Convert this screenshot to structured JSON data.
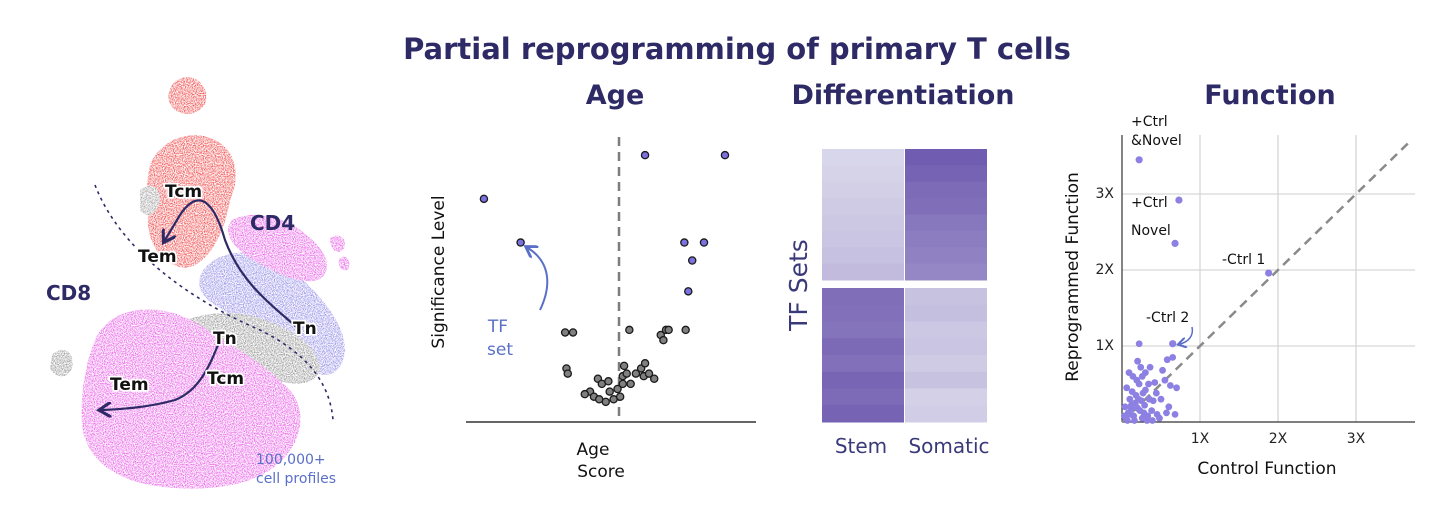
{
  "title": "Partial reprogramming of primary T cells",
  "colors": {
    "title": "#2e2a66",
    "tf_point": "#7b72e0",
    "other_point": "#808080",
    "heat_dark": "#6a55ad",
    "heat_light": "#dcdaeb",
    "function_point": "#8c80e3",
    "umap_red": "#f03a3a",
    "umap_magenta": "#e84fe6",
    "umap_violet": "#8b84e6",
    "umap_gray": "#8d8d8d",
    "tf_annotation": "#5a6fc8"
  },
  "umap": {
    "label_cd4": "CD4",
    "label_cd8": "CD8",
    "clusters": [
      "Tcm",
      "Tem",
      "Tn",
      "Tn",
      "Tem",
      "Tcm"
    ],
    "caption_line1": "100,000+",
    "caption_line2": "cell profiles"
  },
  "chart_data": [
    {
      "type": "scatter",
      "panel": "Age",
      "title": "Age",
      "xlabel_line1": "Age",
      "xlabel_line2": "Score",
      "ylabel": "Significance Level",
      "annotation_line1": "TF",
      "annotation_line2": "set",
      "xlim": [
        -10,
        10
      ],
      "ylim": [
        0,
        10
      ],
      "threshold_x": 0,
      "series": [
        {
          "name": "TF set",
          "points": [
            [
              -9.7,
              8.1
            ],
            [
              -6.9,
              6.4
            ],
            [
              2.6,
              9.8
            ],
            [
              8.7,
              9.8
            ],
            [
              5.6,
              6.4
            ],
            [
              7.1,
              6.4
            ],
            [
              6.2,
              5.7
            ],
            [
              5.9,
              4.5
            ]
          ]
        },
        {
          "name": "",
          "points": [
            [
              -3.5,
              2.9
            ],
            [
              -2.9,
              2.9
            ],
            [
              -3.4,
              1.5
            ],
            [
              -3.3,
              1.3
            ],
            [
              -1.6,
              0.6
            ],
            [
              -2.0,
              0.5
            ],
            [
              -1.3,
              0.4
            ],
            [
              -1.0,
              1.1
            ],
            [
              -0.7,
              0.9
            ],
            [
              -0.4,
              0.2
            ],
            [
              -0.1,
              0.6
            ],
            [
              0.2,
              0.3
            ],
            [
              0.5,
              0.7
            ],
            [
              0.9,
              1.2
            ],
            [
              1.2,
              1.3
            ],
            [
              1.5,
              0.9
            ],
            [
              1.9,
              1.3
            ],
            [
              2.3,
              1.5
            ],
            [
              2.5,
              1.2
            ],
            [
              2.9,
              1.3
            ],
            [
              3.3,
              1.1
            ],
            [
              0.7,
              0.4
            ],
            [
              -0.9,
              0.3
            ],
            [
              1.4,
              3.0
            ],
            [
              3.8,
              2.8
            ],
            [
              4.2,
              3.0
            ],
            [
              4.4,
              3.0
            ],
            [
              4.0,
              2.6
            ],
            [
              5.7,
              3.0
            ],
            [
              1.0,
              1.6
            ],
            [
              2.6,
              1.7
            ],
            [
              -0.2,
              1.0
            ],
            [
              0.9,
              0.9
            ]
          ]
        }
      ]
    },
    {
      "type": "heatmap",
      "panel": "Differentiation",
      "title": "Differentiation",
      "ylabel": "TF Sets",
      "columns": [
        "Stem",
        "Somatic"
      ],
      "rows_group1": [
        0.08,
        0.1,
        0.13,
        0.16,
        0.18,
        0.2,
        0.23,
        0.27
      ],
      "rows_group1_somatic": [
        0.95,
        0.9,
        0.84,
        0.82,
        0.76,
        0.72,
        0.68,
        0.64
      ],
      "rows_group2_stem": [
        0.82,
        0.8,
        0.78,
        0.85,
        0.8,
        0.88,
        0.84,
        0.9
      ],
      "rows_group2_somatic": [
        0.22,
        0.25,
        0.18,
        0.2,
        0.16,
        0.22,
        0.12,
        0.14
      ]
    },
    {
      "type": "scatter",
      "panel": "Function",
      "title": "Function",
      "xlabel": "Control Function",
      "ylabel": "Reprogrammed Function",
      "xticks": [
        "1X",
        "2X",
        "3X"
      ],
      "yticks": [
        "1X",
        "2X",
        "3X"
      ],
      "xlim": [
        0,
        3.8
      ],
      "ylim": [
        0,
        3.6
      ],
      "reference_line": "y = x",
      "grid": true,
      "labels": {
        "ctrl_novel_line1": "+Ctrl",
        "ctrl_novel_line2": "&Novel",
        "ctrl": "+Ctrl",
        "novel": "Novel",
        "minus_ctrl1": "-Ctrl 1",
        "minus_ctrl2": "-Ctrl 2"
      },
      "highlight_points": [
        [
          0.22,
          3.45
        ],
        [
          0.73,
          2.92
        ],
        [
          0.68,
          2.35
        ],
        [
          1.88,
          1.96
        ],
        [
          0.65,
          1.03
        ]
      ],
      "points": [
        [
          0.05,
          0.05
        ],
        [
          0.08,
          0.12
        ],
        [
          0.12,
          0.22
        ],
        [
          0.15,
          0.08
        ],
        [
          0.18,
          0.35
        ],
        [
          0.2,
          0.18
        ],
        [
          0.22,
          0.5
        ],
        [
          0.25,
          0.28
        ],
        [
          0.28,
          0.12
        ],
        [
          0.3,
          0.42
        ],
        [
          0.1,
          0.3
        ],
        [
          0.06,
          0.45
        ],
        [
          0.14,
          0.6
        ],
        [
          0.24,
          0.72
        ],
        [
          0.3,
          0.65
        ],
        [
          0.35,
          0.3
        ],
        [
          0.38,
          0.15
        ],
        [
          0.42,
          0.52
        ],
        [
          0.2,
          0.8
        ],
        [
          0.12,
          0.18
        ],
        [
          0.16,
          0.02
        ],
        [
          0.26,
          0.05
        ],
        [
          0.33,
          0.08
        ],
        [
          0.45,
          0.1
        ],
        [
          0.5,
          0.3
        ],
        [
          0.55,
          0.55
        ],
        [
          0.62,
          0.48
        ],
        [
          0.58,
          0.82
        ],
        [
          0.6,
          0.2
        ],
        [
          0.68,
          0.1
        ],
        [
          0.7,
          0.45
        ],
        [
          0.48,
          0.05
        ],
        [
          0.04,
          0.2
        ],
        [
          0.09,
          0.65
        ],
        [
          0.19,
          0.55
        ],
        [
          0.27,
          0.38
        ],
        [
          0.36,
          0.72
        ],
        [
          0.4,
          0.28
        ],
        [
          0.22,
          1.03
        ],
        [
          0.32,
          0.02
        ],
        [
          0.44,
          0.38
        ],
        [
          0.52,
          0.68
        ],
        [
          0.07,
          0.02
        ],
        [
          0.13,
          0.4
        ],
        [
          0.17,
          0.25
        ],
        [
          0.23,
          0.15
        ],
        [
          0.29,
          0.22
        ],
        [
          0.34,
          0.5
        ],
        [
          0.39,
          0.02
        ],
        [
          0.65,
          0.85
        ],
        [
          0.57,
          0.12
        ],
        [
          0.11,
          0.1
        ],
        [
          0.03,
          0.08
        ],
        [
          0.21,
          0.3
        ],
        [
          0.26,
          0.6
        ]
      ]
    }
  ]
}
